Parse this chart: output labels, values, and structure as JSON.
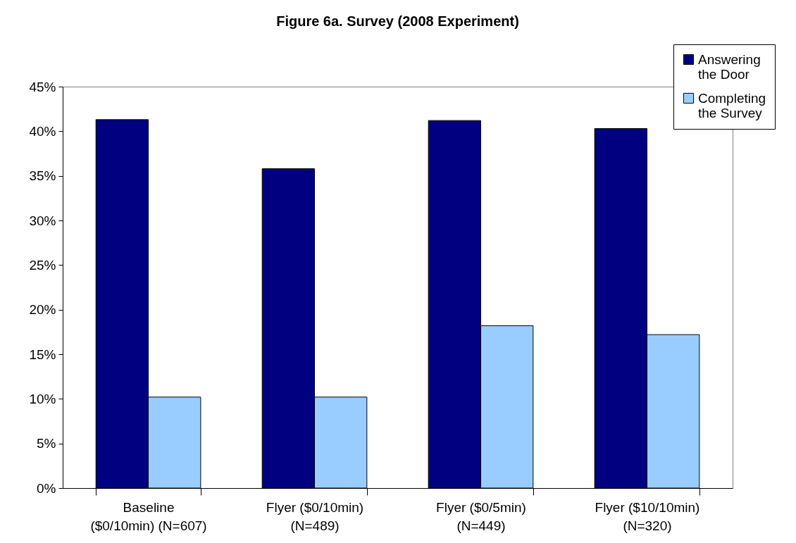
{
  "chart_data": {
    "type": "bar",
    "title": "Figure 6a. Survey (2008 Experiment)",
    "categories": [
      "Baseline ($0/10min) (N=607)",
      "Flyer ($0/10min) (N=489)",
      "Flyer ($0/5min) (N=449)",
      "Flyer ($10/10min) (N=320)"
    ],
    "series": [
      {
        "name": "Answering the Door",
        "color": "#000080",
        "values": [
          41.3,
          35.8,
          41.2,
          40.3
        ]
      },
      {
        "name": "Completing the Survey",
        "color": "#99ccff",
        "values": [
          10.2,
          10.2,
          18.2,
          17.2
        ]
      }
    ],
    "ylim": [
      0,
      45
    ],
    "yticks": [
      {
        "value": 0,
        "label": "0%"
      },
      {
        "value": 5,
        "label": "5%"
      },
      {
        "value": 10,
        "label": "10%"
      },
      {
        "value": 15,
        "label": "15%"
      },
      {
        "value": 20,
        "label": "20%"
      },
      {
        "value": 25,
        "label": "25%"
      },
      {
        "value": 30,
        "label": "30%"
      },
      {
        "value": 35,
        "label": "35%"
      },
      {
        "value": 40,
        "label": "40%"
      },
      {
        "value": 45,
        "label": "45%"
      }
    ],
    "grid": false,
    "legend": "top right"
  }
}
